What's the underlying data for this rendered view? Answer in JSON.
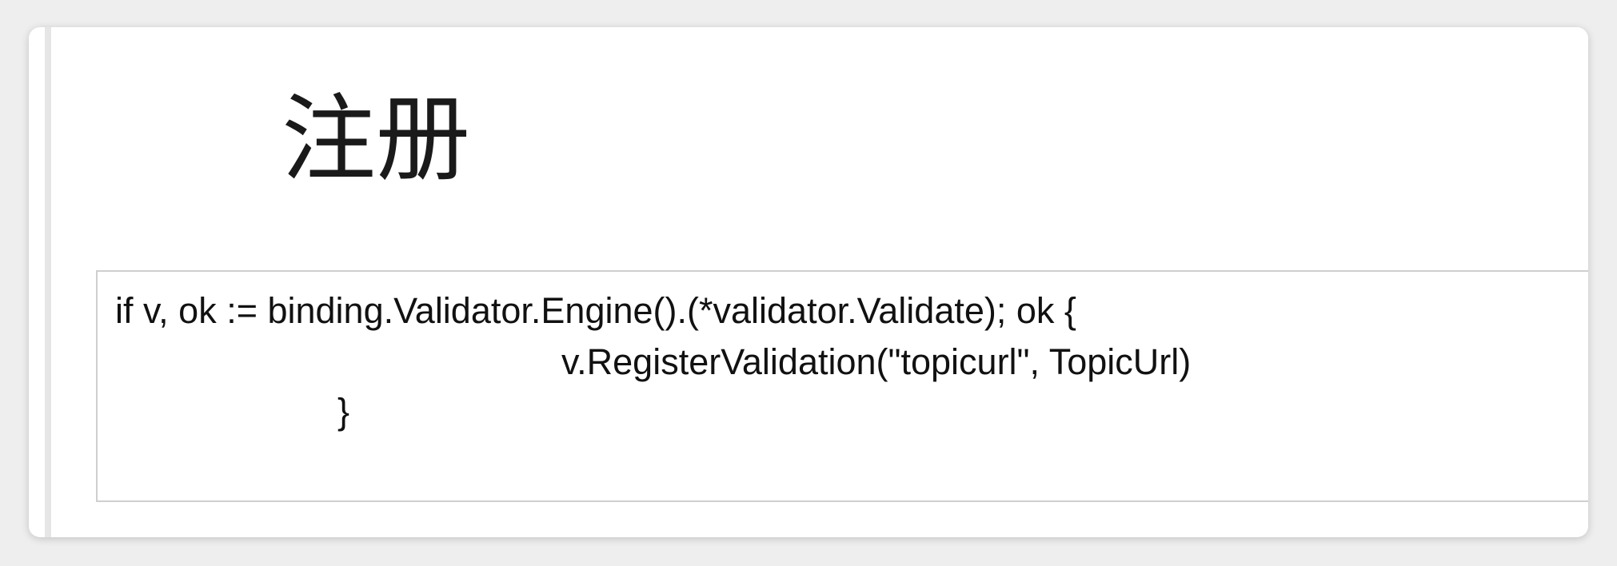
{
  "slide": {
    "title": "注册",
    "code_lines": [
      "if v, ok := binding.Validator.Engine().(*validator.Validate); ok {",
      "v.RegisterValidation(\"topicurl\", TopicUrl)",
      "}"
    ]
  }
}
